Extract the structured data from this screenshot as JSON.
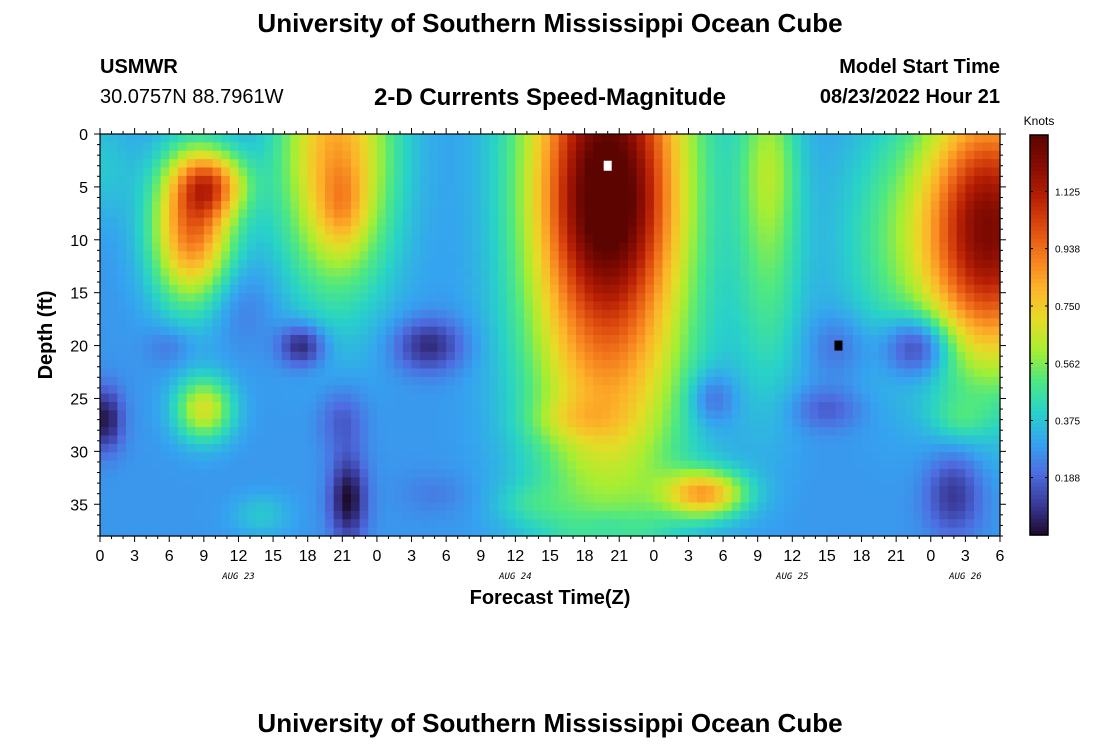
{
  "header": {
    "title": "University of Southern Mississippi Ocean Cube",
    "station": "USMWR",
    "coordinates": "30.0757N  88.7961W",
    "subtitle": "2-D Currents Speed-Magnitude",
    "model_start_label": "Model Start Time",
    "model_start_value": "08/23/2022 Hour 21"
  },
  "footer": {
    "title": "University of Southern Mississippi Ocean Cube"
  },
  "chart_data": {
    "type": "heatmap",
    "title": "2-D Currents Speed-Magnitude",
    "xlabel": "Forecast Time(Z)",
    "ylabel": "Depth (ft)",
    "x_ticks": [
      "0",
      "3",
      "6",
      "9",
      "12",
      "15",
      "18",
      "21",
      "0",
      "3",
      "6",
      "9",
      "12",
      "15",
      "18",
      "21",
      "0",
      "3",
      "6",
      "9",
      "12",
      "15",
      "18",
      "21",
      "0",
      "3",
      "6"
    ],
    "date_labels": [
      {
        "label": "AUG 23",
        "at_hour": 12
      },
      {
        "label": "AUG 24",
        "at_hour": 36
      },
      {
        "label": "AUG 25",
        "at_hour": 60
      },
      {
        "label": "AUG 26",
        "at_hour": 75
      }
    ],
    "xlim_hours": [
      0,
      78
    ],
    "y_ticks": [
      0,
      5,
      10,
      15,
      20,
      25,
      30,
      35
    ],
    "ylim_ft": [
      0,
      38
    ],
    "y_inverted": true,
    "colorbar": {
      "title": "Knots",
      "range": [
        0,
        1.31
      ],
      "ticks": [
        "0.188",
        "0.375",
        "0.562",
        "0.750",
        "0.938",
        "1.125"
      ],
      "colors": [
        "#1c0b2c",
        "#3a3a9a",
        "#4d6de0",
        "#35a3f0",
        "#28d2c8",
        "#4ee882",
        "#a7ee32",
        "#e6dc26",
        "#fdb42a",
        "#f57e1e",
        "#dd4a0e",
        "#b51e04",
        "#860c02",
        "#5c0400"
      ]
    },
    "grid": false,
    "features": [
      {
        "t": 10,
        "d": 5,
        "r": 3,
        "v": 0.3
      },
      {
        "t": 8,
        "d": 9,
        "tr": 3.5,
        "dr": 7,
        "v": 0.65
      },
      {
        "t": 9,
        "d": 4,
        "tr": 3,
        "dr": 3,
        "v": 0.15
      },
      {
        "t": 9,
        "d": 26,
        "tr": 2.5,
        "dr": 3,
        "v": 0.4
      },
      {
        "t": 20.5,
        "d": 2,
        "tr": 5,
        "dr": 13,
        "v": 0.55
      },
      {
        "t": 21,
        "d": 7,
        "tr": 2,
        "dr": 4,
        "v": 0.15
      },
      {
        "t": 14,
        "d": 36,
        "tr": 2.5,
        "dr": 2,
        "v": 0.1
      },
      {
        "t": 44,
        "d": 3,
        "tr": 7,
        "dr": 30,
        "v": 0.9
      },
      {
        "t": 44,
        "d": 7,
        "tr": 5,
        "dr": 8,
        "v": 0.25
      },
      {
        "t": 52.5,
        "d": 34,
        "tr": 3.5,
        "dr": 2.2,
        "v": 0.5
      },
      {
        "t": 58,
        "d": 12,
        "tr": 3,
        "dr": 14,
        "v": 0.2
      },
      {
        "t": 68,
        "d": 10,
        "tr": 5,
        "dr": 12,
        "v": 0.15
      },
      {
        "t": 77,
        "d": 9,
        "tr": 6,
        "dr": 13,
        "v": 0.95
      },
      {
        "t": 74.5,
        "d": 27,
        "tr": 2.5,
        "dr": 2,
        "v": 0.1
      },
      {
        "t": 41,
        "d": 27,
        "tr": 4,
        "dr": 2,
        "v": 0.1
      },
      {
        "t": 37,
        "d": 35,
        "tr": 3,
        "dr": 2,
        "v": 0.08
      },
      {
        "t": 6,
        "d": 20,
        "tr": 2,
        "dr": 2,
        "v": -0.08
      },
      {
        "t": 12,
        "d": 16,
        "tr": 3,
        "dr": 4,
        "v": -0.08
      },
      {
        "t": 17.5,
        "d": 20,
        "tr": 2,
        "dr": 2,
        "v": -0.26
      },
      {
        "t": 28.5,
        "d": 20,
        "tr": 3,
        "dr": 2.5,
        "v": -0.22
      },
      {
        "t": 21.5,
        "d": 34.5,
        "tr": 1.6,
        "dr": 4,
        "v": -0.28
      },
      {
        "t": 21,
        "d": 27,
        "tr": 2,
        "dr": 3,
        "v": -0.12
      },
      {
        "t": 29,
        "d": 34,
        "tr": 3,
        "dr": 2,
        "v": -0.05
      },
      {
        "t": 53,
        "d": 25,
        "tr": 2,
        "dr": 2.5,
        "v": -0.15
      },
      {
        "t": 63,
        "d": 26,
        "tr": 3,
        "dr": 2,
        "v": -0.12
      },
      {
        "t": 64,
        "d": 20,
        "tr": 2.5,
        "dr": 3,
        "v": -0.1
      },
      {
        "t": 71,
        "d": 20,
        "tr": 3,
        "dr": 3,
        "v": -0.32
      },
      {
        "t": 74,
        "d": 34,
        "tr": 2.5,
        "dr": 4,
        "v": -0.2
      },
      {
        "t": 44,
        "d": 37,
        "tr": 2.5,
        "dr": 1.5,
        "v": -0.06
      },
      {
        "t": 0.5,
        "d": 27,
        "tr": 1.5,
        "dr": 3,
        "v": -0.25
      },
      {
        "t": 0,
        "d": 3,
        "tr": 3,
        "dr": 5,
        "v": 0.1
      },
      {
        "t": 58,
        "d": 2,
        "tr": 2.5,
        "dr": 8,
        "v": 0.2
      }
    ],
    "base_speed": 0.28,
    "markers": [
      {
        "hour": 44,
        "depth_ft": 3,
        "color": "#ffffff"
      },
      {
        "hour": 64,
        "depth_ft": 20,
        "color": "#000000"
      }
    ]
  }
}
